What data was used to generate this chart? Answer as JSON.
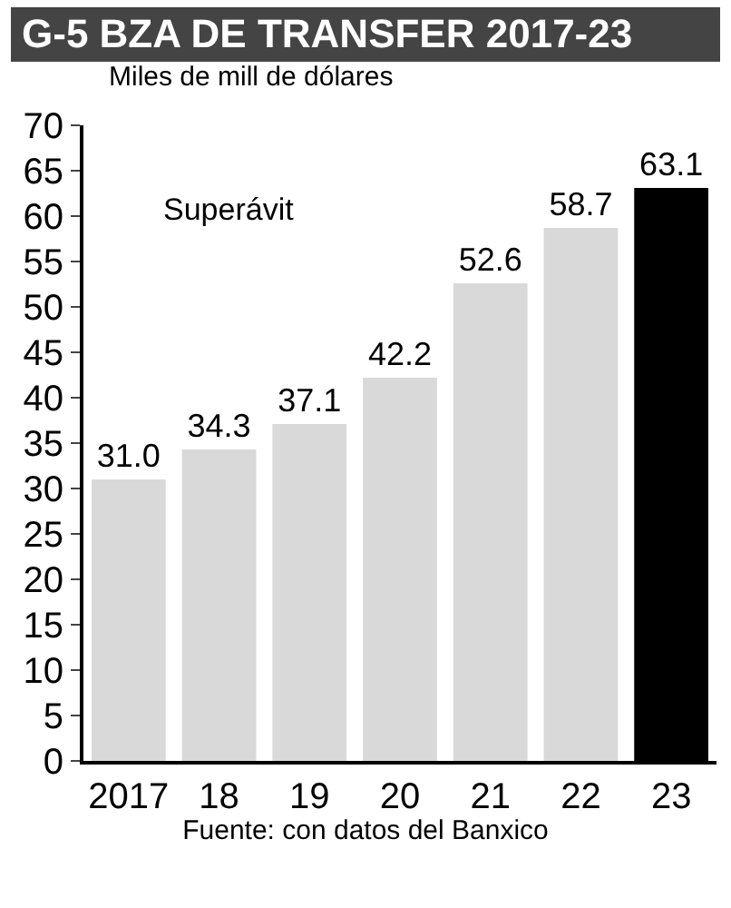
{
  "chart_data": {
    "type": "bar",
    "title": "G-5  BZA DE TRANSFER 2017-23",
    "subtitle": "Miles de mill de dólares",
    "categories": [
      "2017",
      "18",
      "19",
      "20",
      "21",
      "22",
      "23"
    ],
    "values": [
      31.0,
      34.3,
      37.1,
      42.2,
      52.6,
      58.7,
      63.1
    ],
    "colors": [
      "#d9d9d9",
      "#d9d9d9",
      "#d9d9d9",
      "#d9d9d9",
      "#d9d9d9",
      "#d9d9d9",
      "#000000"
    ],
    "value_labels": [
      "31.0",
      "34.3",
      "37.1",
      "42.2",
      "52.6",
      "58.7",
      "63.1"
    ],
    "ylim": [
      0,
      70
    ],
    "yticks": [
      0,
      5,
      10,
      15,
      20,
      25,
      30,
      35,
      40,
      45,
      50,
      55,
      60,
      65,
      70
    ],
    "grid": false,
    "annotations": [
      "Superávit",
      "Fuente: con datos del Banxico"
    ]
  }
}
